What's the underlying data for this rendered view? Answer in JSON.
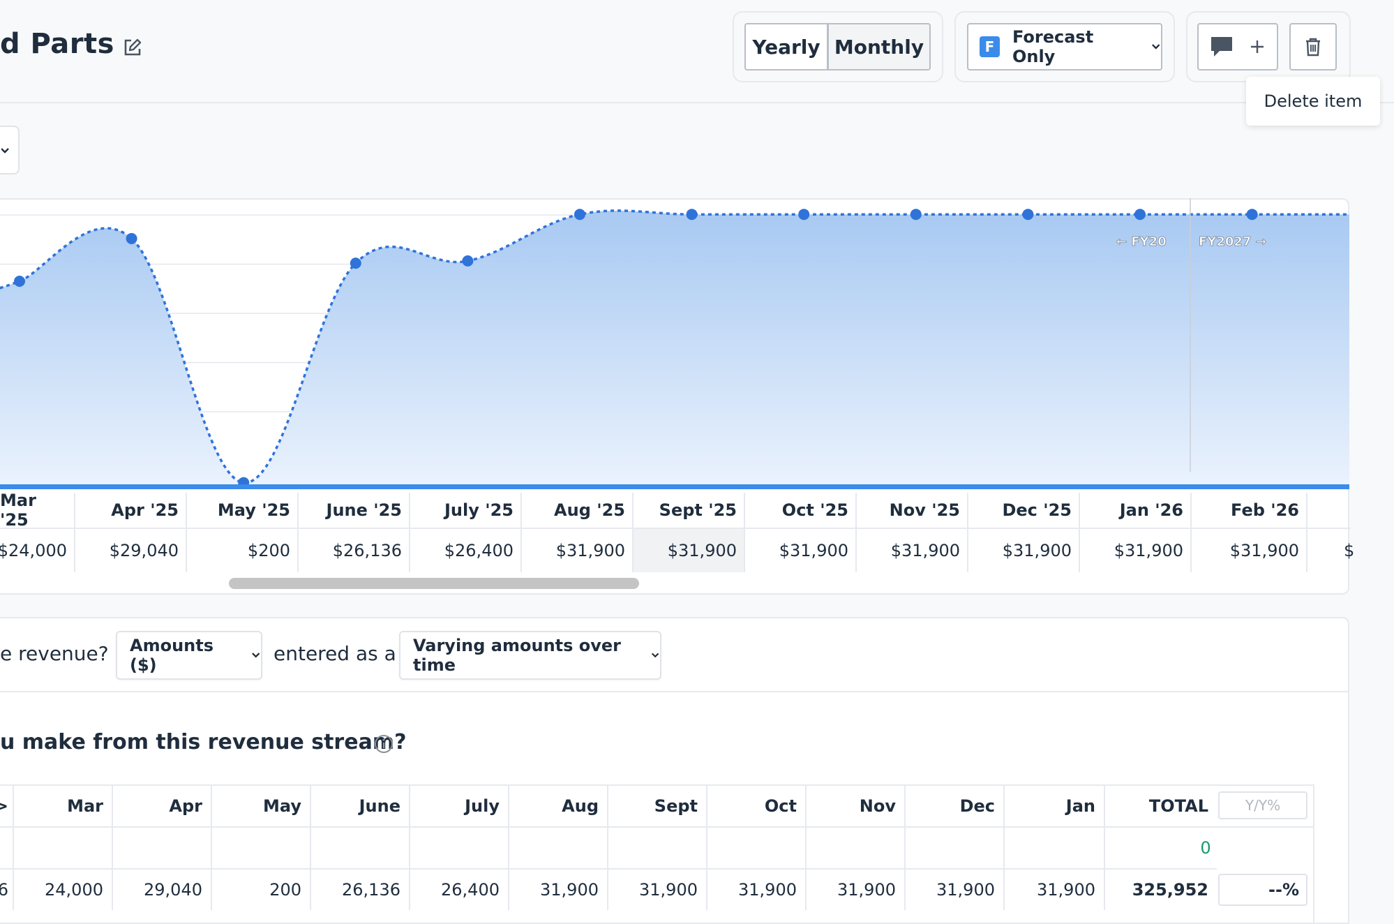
{
  "header": {
    "title": "d Parts",
    "view_toggle": {
      "yearly": "Yearly",
      "monthly": "Monthly",
      "selected": "Monthly"
    },
    "scenario_dropdown": {
      "badge": "F",
      "label": "Forecast Only"
    },
    "tooltip": "Delete item"
  },
  "chart": {
    "fiscal_left": "← FY20",
    "fiscal_right": "FY2027 →",
    "accent_color": "#2f73d9",
    "fill_color": "#a8c9f2"
  },
  "chart_data": {
    "type": "area",
    "x": [
      "Mar '25",
      "Apr '25",
      "May '25",
      "June '25",
      "July '25",
      "Aug '25",
      "Sept '25",
      "Oct '25",
      "Nov '25",
      "Dec '25",
      "Jan '26",
      "Feb '26"
    ],
    "values": [
      24000,
      29040,
      200,
      26136,
      26400,
      31900,
      31900,
      31900,
      31900,
      31900,
      31900,
      31900
    ],
    "ylim": [
      0,
      32000
    ],
    "grid": true
  },
  "months_row": [
    "Mar '25",
    "Apr '25",
    "May '25",
    "June '25",
    "July '25",
    "Aug '25",
    "Sept '25",
    "Oct '25",
    "Nov '25",
    "Dec '25",
    "Jan '26",
    "Feb '26"
  ],
  "values_row": [
    "$24,000",
    "$29,040",
    "$200",
    "$26,136",
    "$26,400",
    "$31,900",
    "$31,900",
    "$31,900",
    "$31,900",
    "$31,900",
    "$31,900",
    "$31,900"
  ],
  "values_row_partial": "$",
  "settings": {
    "q_prefix": "e revenue?",
    "amount_type": "Amounts ($)",
    "entered_as": "entered as a",
    "entry_mode": "Varying amounts over time",
    "section_question": "u make from this revenue stream?"
  },
  "table": {
    "headers": [
      "Mar",
      "Apr",
      "May",
      "June",
      "July",
      "Aug",
      "Sept",
      "Oct",
      "Nov",
      "Dec",
      "Jan"
    ],
    "total_header": "TOTAL",
    "yy_label": "Y/Y%",
    "partial_header": ">",
    "row1_total": "0",
    "row2_partial": "6",
    "row2": [
      "24,000",
      "29,040",
      "200",
      "26,136",
      "26,400",
      "31,900",
      "31,900",
      "31,900",
      "31,900",
      "31,900",
      "31,900"
    ],
    "row2_total": "325,952",
    "row2_pct": "--%"
  }
}
